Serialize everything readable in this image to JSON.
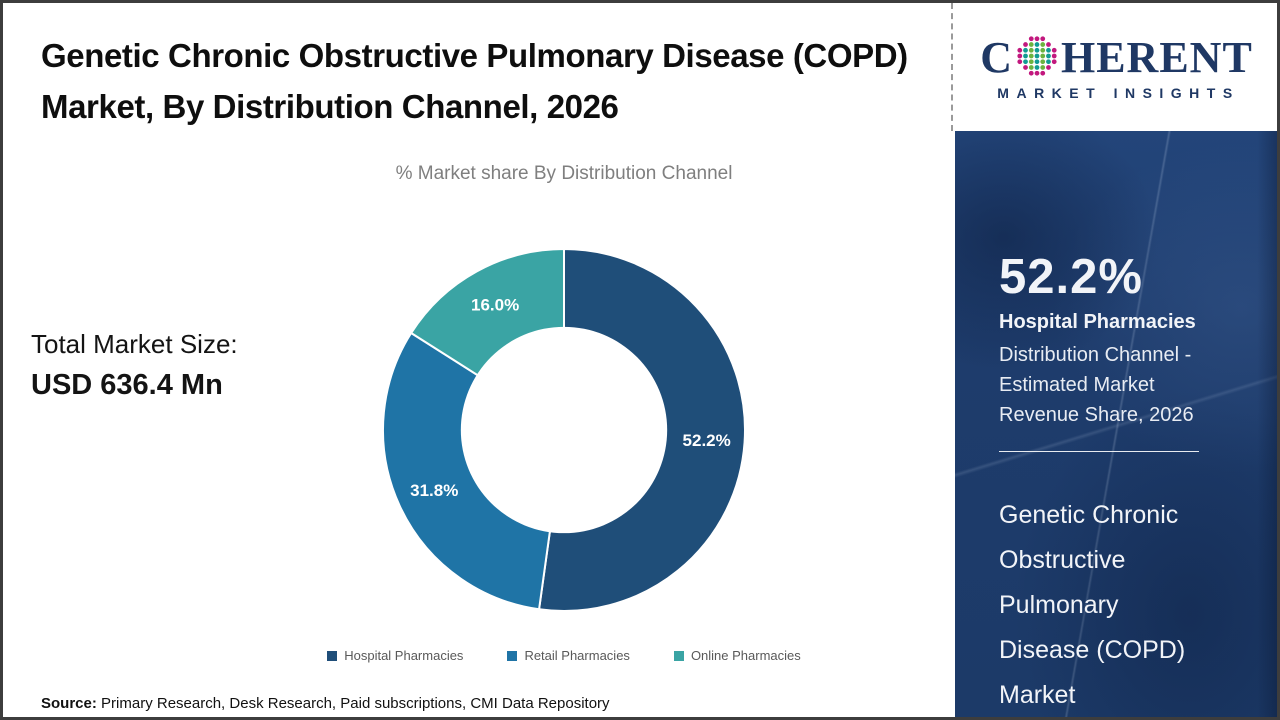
{
  "header": {
    "title": "Genetic Chronic Obstructive Pulmonary Disease (COPD) Market, By Distribution Channel, 2026",
    "subtitle": "% Market share By Distribution Channel"
  },
  "chart_data": {
    "type": "pie",
    "subtype": "donut",
    "title": "% Market share By Distribution Channel",
    "categories": [
      "Hospital Pharmacies",
      "Retail Pharmacies",
      "Online Pharmacies"
    ],
    "values": [
      52.2,
      31.8,
      16.0
    ],
    "labels": [
      "52.2%",
      "31.8%",
      "16.0%"
    ],
    "colors": [
      "#1F4E79",
      "#1F74A6",
      "#3AA4A4"
    ],
    "start_angle_deg": 0,
    "direction": "clockwise",
    "hole_ratio": 0.57,
    "legend_position": "bottom",
    "label_color": "#FFFFFF"
  },
  "total_market": {
    "label": "Total Market Size:",
    "value": "USD 636.4 Mn"
  },
  "source": {
    "label": "Source:",
    "text": " Primary Research, Desk Research, Paid subscriptions, CMI Data Repository"
  },
  "sidebar": {
    "logo": {
      "part1": "C",
      "part2": "HERENT",
      "tagline": "MARKET INSIGHTS",
      "text_color": "#1F3864",
      "globe_colors": {
        "outer": "#C2187E",
        "inner_a": "#119B93",
        "inner_b": "#6CB33F"
      }
    },
    "highlight": {
      "value": "52.2%",
      "channel": "Hospital Pharmacies",
      "description": "Distribution Channel - Estimated Market Revenue Share, 2026"
    },
    "market_name": "Genetic Chronic Obstructive Pulmonary Disease (COPD) Market",
    "panel_color": "#1E3C6C"
  }
}
